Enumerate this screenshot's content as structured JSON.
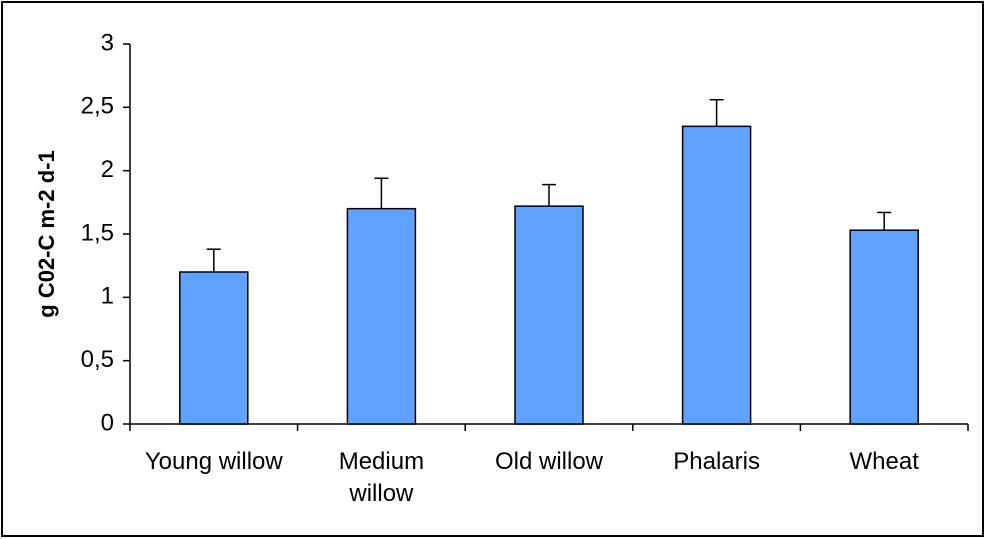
{
  "chart_data": {
    "type": "bar",
    "ylabel": "g C02-C m-2 d-1",
    "categories": [
      "Young willow",
      "Medium willow",
      "Old willow",
      "Phalaris",
      "Wheat"
    ],
    "values": [
      1.2,
      1.7,
      1.72,
      2.35,
      1.53
    ],
    "errors": [
      0.18,
      0.24,
      0.17,
      0.21,
      0.14
    ],
    "color": "#5fa2ff",
    "ylim": [
      0,
      3
    ],
    "yticks": [
      0,
      {
        "value": 0.5,
        "label": "0,5"
      },
      1,
      {
        "value": 1.5,
        "label": "1,5"
      },
      2,
      {
        "value": 2.5,
        "label": "2,5"
      },
      3
    ],
    "grid": false
  }
}
